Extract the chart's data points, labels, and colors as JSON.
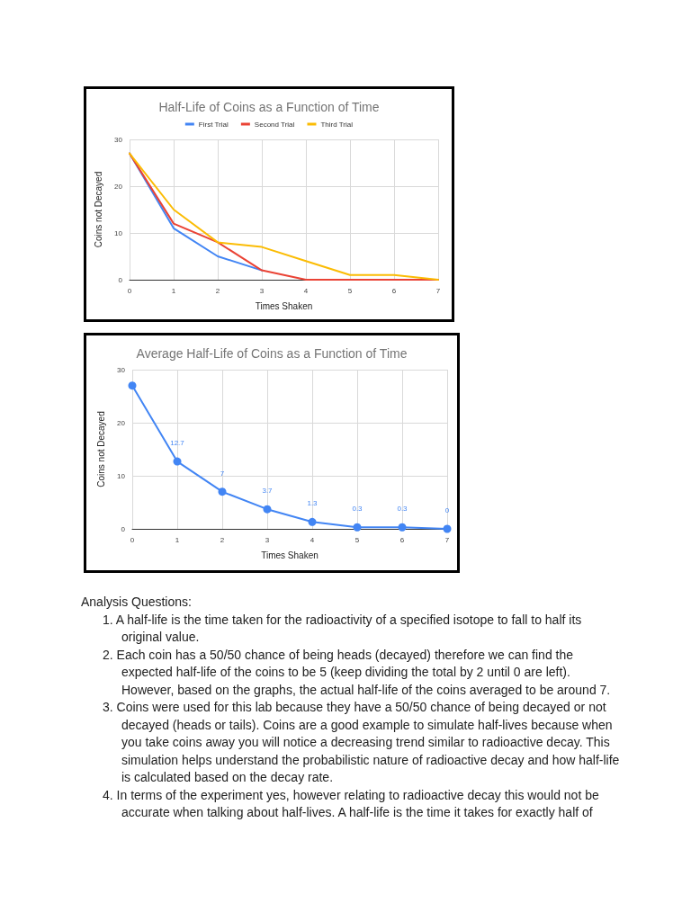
{
  "chart_data": [
    {
      "type": "line",
      "title": "Half-Life of Coins as a Function of Time",
      "xlabel": "Times Shaken",
      "ylabel": "Coins not Decayed",
      "x": [
        0,
        1,
        2,
        3,
        4,
        5,
        6,
        7
      ],
      "xlim": [
        0,
        7
      ],
      "xticks": [
        0,
        1,
        2,
        3,
        4,
        5,
        6,
        7
      ],
      "ylim": [
        0,
        30
      ],
      "yticks": [
        0,
        10,
        20,
        30
      ],
      "grid": true,
      "legend": "top",
      "marker": "none",
      "line_style": "solid",
      "series": [
        {
          "name": "First Trial",
          "color": "#4285f4",
          "values": [
            27,
            11,
            5,
            2,
            null,
            null,
            null,
            null
          ]
        },
        {
          "name": "Second Trial",
          "color": "#ea4335",
          "values": [
            27,
            12,
            8,
            2,
            0,
            0,
            0,
            0
          ]
        },
        {
          "name": "Third Trial",
          "color": "#fbbc04",
          "values": [
            27,
            15,
            8,
            7,
            4,
            1,
            1,
            0
          ]
        }
      ]
    },
    {
      "type": "line",
      "title": "Average Half-Life of Coins as a Function of Time",
      "xlabel": "Times Shaken",
      "ylabel": "Coins not Decayed",
      "x": [
        0,
        1,
        2,
        3,
        4,
        5,
        6,
        7
      ],
      "xlim": [
        0,
        7
      ],
      "xticks": [
        0,
        1,
        2,
        3,
        4,
        5,
        6,
        7
      ],
      "ylim": [
        0,
        30
      ],
      "yticks": [
        0,
        10,
        20,
        30
      ],
      "grid": true,
      "marker": "circle",
      "line_style": "solid",
      "series": [
        {
          "color": "#4285f4",
          "values": [
            27,
            12.7,
            7,
            3.7,
            1.3,
            0.3,
            0.3,
            0
          ],
          "value_labels": [
            null,
            "12.7",
            "7",
            "3.7",
            "1.3",
            "0.3",
            "0.3",
            "0"
          ]
        }
      ]
    },
    {
      "type": "other",
      "annotations": [
        "Analysis Questions:",
        "1. A half-life is the time taken for the radioactivity of a specified isotope to fall to half its original value.",
        "2. Each coin has a 50/50 chance of being heads (decayed) therefore we can find the expected half-life of the coins to be 5 (keep dividing the total by 2 until 0 are left). However, based on the graphs, the actual half-life of the coins averaged to be around 7.",
        "3. Coins were used for this lab because they have a 50/50 chance of being decayed or not decayed (heads or tails). Coins are a good example to simulate half-lives because when you take coins away you will notice a decreasing trend similar to radioactive decay. This simulation helps understand the probabilistic nature of radioactive decay and how half-life is calculated based on the decay rate.",
        "4. In terms of the experiment yes, however relating to radioactive decay this would not be accurate when talking about half-lives. A half-life is the time it takes for exactly half of"
      ]
    }
  ]
}
